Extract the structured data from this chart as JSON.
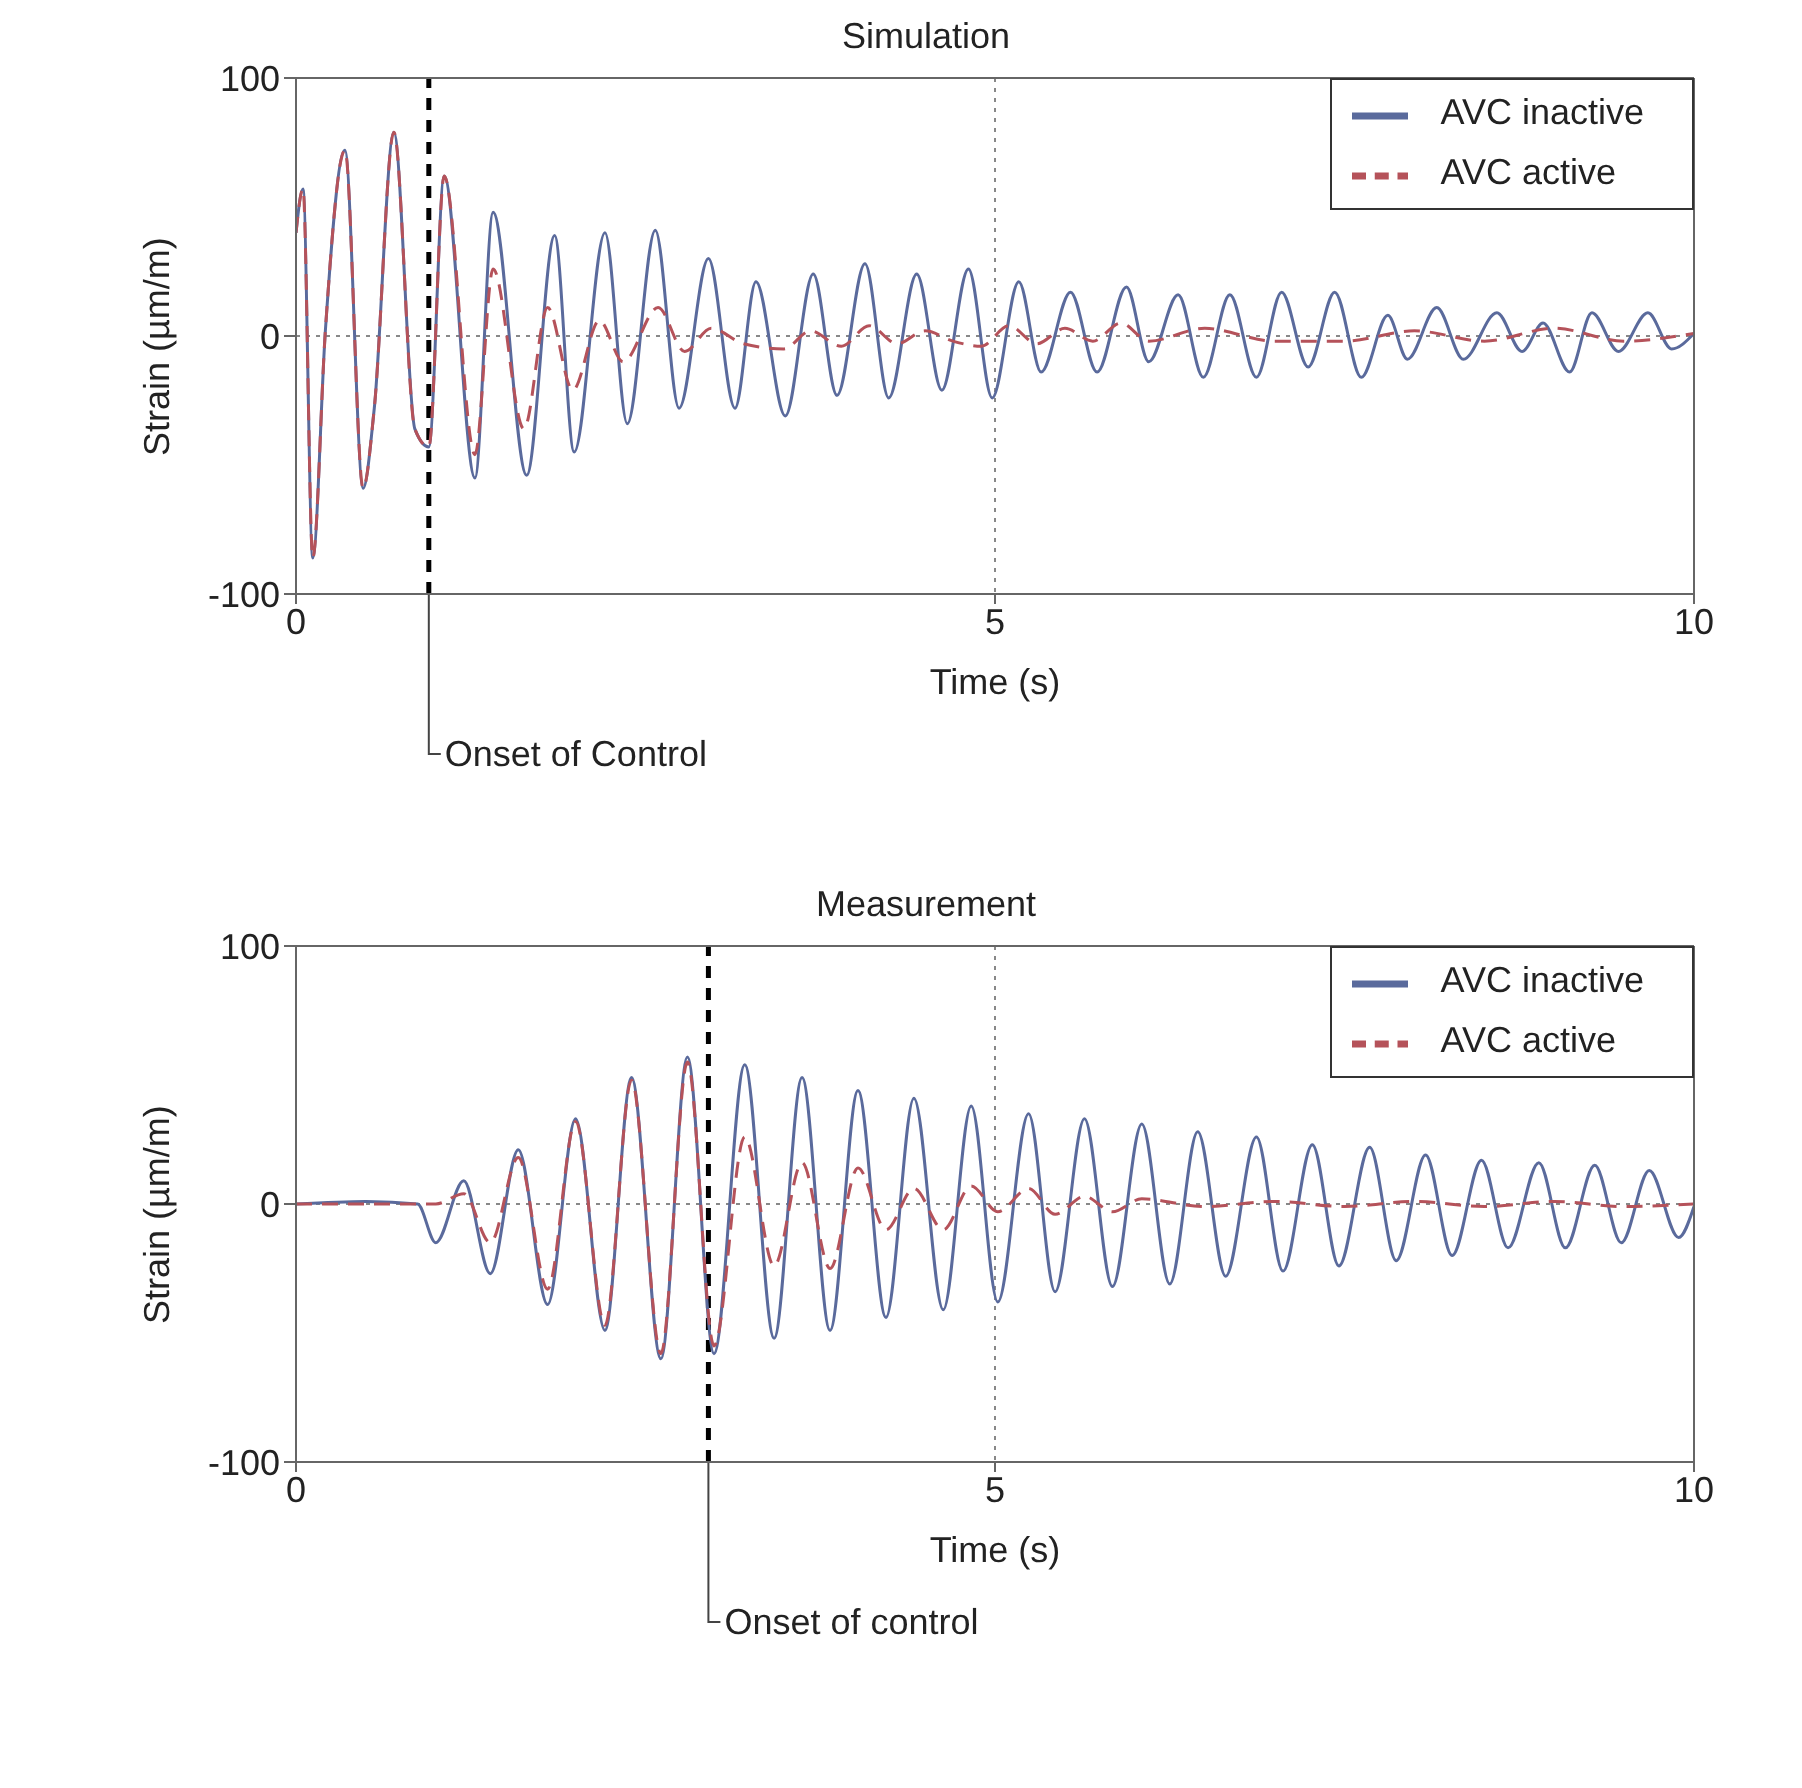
{
  "chart_data": [
    {
      "type": "line",
      "title": "Simulation",
      "xlabel": "Time (s)",
      "ylabel": "Strain (µm/m)",
      "xlim": [
        0,
        10
      ],
      "xticks": [
        0,
        5,
        10
      ],
      "ylim": [
        -100,
        100
      ],
      "yticks": [
        -100,
        0,
        100
      ],
      "grid": true,
      "legend": "top right",
      "ref_lines": [
        {
          "axis": "x",
          "value": 0.95,
          "label": "Onset of Control",
          "color": "#000000",
          "line_style": "dashed"
        }
      ],
      "series": [
        {
          "name": "AVC inactive",
          "color": "#5a6a9c",
          "line_style": "solid",
          "x": [
            0,
            0.05,
            0.12,
            0.21,
            0.35,
            0.48,
            0.56,
            0.7,
            0.85,
            0.95,
            1.06,
            1.28,
            1.41,
            1.65,
            1.85,
            1.99,
            2.21,
            2.37,
            2.57,
            2.74,
            2.95,
            3.14,
            3.29,
            3.5,
            3.7,
            3.87,
            4.07,
            4.24,
            4.44,
            4.62,
            4.81,
            4.98,
            5.17,
            5.33,
            5.54,
            5.73,
            5.94,
            6.1,
            6.31,
            6.49,
            6.68,
            6.87,
            7.05,
            7.24,
            7.43,
            7.62,
            7.81,
            7.95,
            8.16,
            8.35,
            8.59,
            8.77,
            8.92,
            9.11,
            9.27,
            9.46,
            9.67,
            9.84,
            10
          ],
          "values": [
            40,
            57,
            -86,
            2,
            72,
            -59,
            -28,
            79,
            -36,
            -43,
            62,
            -55,
            48,
            -54,
            39,
            -45,
            40,
            -34,
            41,
            -28,
            30,
            -28,
            21,
            -31,
            24,
            -23,
            28,
            -24,
            24,
            -21,
            26,
            -24,
            21,
            -14,
            17,
            -14,
            19,
            -10,
            16,
            -16,
            16,
            -16,
            17,
            -12,
            17,
            -16,
            8,
            -9,
            11,
            -9,
            9,
            -6,
            5,
            -14,
            9,
            -6,
            9,
            -5,
            1
          ]
        },
        {
          "name": "AVC active",
          "color": "#b5525a",
          "line_style": "dashed",
          "x": [
            0,
            0.05,
            0.12,
            0.21,
            0.35,
            0.48,
            0.56,
            0.7,
            0.85,
            0.95,
            1.06,
            1.28,
            1.41,
            1.63,
            1.8,
            1.98,
            2.17,
            2.34,
            2.59,
            2.78,
            2.97,
            3.2,
            3.49,
            3.68,
            3.9,
            4.1,
            4.3,
            4.5,
            4.7,
            4.9,
            5.1,
            5.3,
            5.5,
            5.7,
            5.9,
            6.1,
            6.5,
            7.0,
            7.5,
            8.0,
            8.5,
            9.0,
            9.5,
            10
          ],
          "values": [
            40,
            57,
            -86,
            2,
            72,
            -59,
            -28,
            79,
            -36,
            -43,
            62,
            -46,
            26,
            -36,
            11,
            -21,
            6,
            -10,
            11,
            -6,
            3,
            -3,
            -5,
            2,
            -4,
            4,
            -3,
            2,
            -2,
            -4,
            4,
            -3,
            3,
            -2,
            5,
            -2,
            3,
            -2,
            -2,
            2,
            -2,
            3,
            -2,
            1
          ]
        }
      ]
    },
    {
      "type": "line",
      "title": "Measurement",
      "xlabel": "Time (s)",
      "ylabel": "Strain (µm/m)",
      "xlim": [
        0,
        10
      ],
      "xticks": [
        0,
        5,
        10
      ],
      "ylim": [
        -100,
        100
      ],
      "yticks": [
        -100,
        0,
        100
      ],
      "grid": true,
      "legend": "top right",
      "ref_lines": [
        {
          "axis": "x",
          "value": 2.95,
          "label": "Onset of control",
          "color": "#000000",
          "line_style": "dashed"
        }
      ],
      "series": [
        {
          "name": "AVC inactive",
          "color": "#5a6a9c",
          "line_style": "solid",
          "x": [
            0,
            0.5,
            0.87,
            1.0,
            1.2,
            1.39,
            1.59,
            1.8,
            2.0,
            2.21,
            2.4,
            2.61,
            2.8,
            2.99,
            3.21,
            3.42,
            3.62,
            3.82,
            4.02,
            4.22,
            4.42,
            4.63,
            4.83,
            5.02,
            5.24,
            5.43,
            5.64,
            5.84,
            6.05,
            6.25,
            6.45,
            6.65,
            6.87,
            7.06,
            7.27,
            7.46,
            7.68,
            7.87,
            8.08,
            8.27,
            8.48,
            8.67,
            8.89,
            9.08,
            9.29,
            9.48,
            9.68,
            9.89,
            10
          ],
          "values": [
            0,
            1,
            0,
            -15,
            9,
            -27,
            21,
            -39,
            33,
            -49,
            49,
            -60,
            57,
            -58,
            54,
            -52,
            49,
            -49,
            44,
            -44,
            41,
            -41,
            38,
            -38,
            35,
            -34,
            33,
            -32,
            31,
            -31,
            28,
            -28,
            26,
            -26,
            23,
            -24,
            22,
            -22,
            19,
            -20,
            17,
            -17,
            16,
            -17,
            15,
            -15,
            13,
            -13,
            -1
          ]
        },
        {
          "name": "AVC active",
          "color": "#b5525a",
          "line_style": "dashed",
          "x": [
            0,
            1.0,
            1.2,
            1.39,
            1.59,
            1.8,
            2.0,
            2.21,
            2.4,
            2.61,
            2.8,
            2.99,
            3.21,
            3.42,
            3.62,
            3.82,
            4.02,
            4.22,
            4.42,
            4.63,
            4.83,
            5.02,
            5.24,
            5.43,
            5.64,
            5.84,
            6.05,
            6.5,
            7,
            7.5,
            8,
            8.5,
            9,
            9.5,
            10
          ],
          "values": [
            0,
            0,
            4,
            -15,
            18,
            -33,
            32,
            -47,
            48,
            -58,
            55,
            -55,
            26,
            -24,
            16,
            -25,
            14,
            -10,
            6,
            -10,
            7,
            -3,
            6,
            -4,
            3,
            -3,
            2,
            -1,
            1,
            -1,
            1,
            -1,
            1,
            -1,
            0
          ]
        }
      ]
    }
  ]
}
